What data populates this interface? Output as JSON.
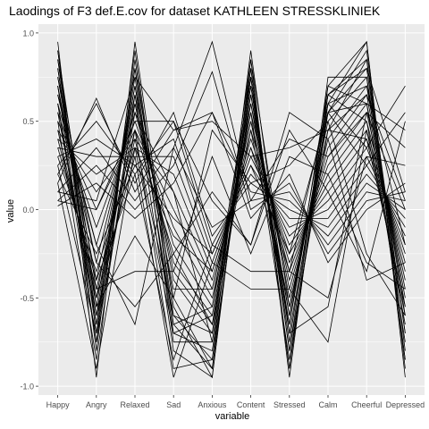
{
  "chart_data": {
    "type": "line",
    "title": "Laodings of F3 def.E.cov for dataset KATHLEEN STRESSKLINIEK",
    "xlabel": "variable",
    "ylabel": "value",
    "categories": [
      "Happy",
      "Angry",
      "Relaxed",
      "Sad",
      "Anxious",
      "Content",
      "Stressed",
      "Calm",
      "Cheerful",
      "Depressed"
    ],
    "ylim": [
      -1.05,
      1.05
    ],
    "yticks": [
      1.0,
      0.5,
      0.0,
      -0.5,
      -1.0
    ],
    "ytick_labels": [
      "1.0",
      "0.5",
      "0.0",
      "-0.5",
      "-1.0"
    ],
    "grid": true,
    "panel_background": "#ebebeb",
    "grid_color": "#ffffff",
    "line_color": "#000000",
    "series": [
      {
        "values": [
          0.95,
          -0.95,
          0.95,
          -0.55,
          -0.95,
          0.8,
          -0.9,
          0.6,
          0.95,
          -0.95
        ]
      },
      {
        "values": [
          0.9,
          -0.8,
          0.85,
          -0.6,
          -0.85,
          0.9,
          -0.7,
          0.55,
          0.9,
          -0.8
        ]
      },
      {
        "values": [
          0.85,
          -0.7,
          0.8,
          -0.5,
          -0.9,
          0.75,
          -0.8,
          0.45,
          0.85,
          -0.85
        ]
      },
      {
        "values": [
          0.8,
          -0.6,
          0.75,
          -0.7,
          -0.8,
          0.7,
          -0.6,
          0.65,
          0.8,
          -0.7
        ]
      },
      {
        "values": [
          0.75,
          -0.5,
          0.7,
          -0.4,
          -0.7,
          0.85,
          -0.55,
          0.5,
          0.75,
          -0.6
        ]
      },
      {
        "values": [
          0.7,
          -0.4,
          0.65,
          -0.35,
          -0.65,
          0.65,
          -0.5,
          0.4,
          0.7,
          -0.55
        ]
      },
      {
        "values": [
          0.65,
          -0.3,
          0.6,
          -0.3,
          -0.6,
          0.6,
          -0.45,
          0.35,
          0.65,
          -0.5
        ]
      },
      {
        "values": [
          0.6,
          -0.2,
          0.55,
          -0.2,
          -0.55,
          0.55,
          -0.4,
          0.3,
          0.6,
          -0.45
        ]
      },
      {
        "values": [
          0.55,
          -0.1,
          0.5,
          -0.1,
          -0.5,
          0.5,
          -0.35,
          0.25,
          0.55,
          -0.4
        ]
      },
      {
        "values": [
          0.5,
          0.0,
          0.45,
          0.0,
          -0.45,
          0.45,
          -0.3,
          0.2,
          0.5,
          -0.35
        ]
      },
      {
        "values": [
          0.45,
          0.1,
          0.4,
          0.1,
          -0.4,
          0.4,
          -0.25,
          0.15,
          0.45,
          -0.3
        ]
      },
      {
        "values": [
          0.4,
          0.2,
          0.35,
          0.2,
          -0.35,
          0.35,
          -0.2,
          0.1,
          0.4,
          -0.25
        ]
      },
      {
        "values": [
          0.35,
          0.3,
          0.3,
          0.3,
          -0.3,
          0.3,
          -0.15,
          0.05,
          0.35,
          -0.2
        ]
      },
      {
        "values": [
          0.3,
          0.4,
          0.25,
          0.4,
          -0.25,
          0.25,
          -0.1,
          0.0,
          0.3,
          -0.15
        ]
      },
      {
        "values": [
          0.25,
          0.5,
          0.2,
          0.5,
          -0.2,
          0.2,
          -0.05,
          -0.05,
          0.25,
          -0.1
        ]
      },
      {
        "values": [
          0.2,
          0.6,
          0.15,
          0.55,
          -0.15,
          0.15,
          0.0,
          -0.1,
          0.2,
          -0.05
        ]
      },
      {
        "values": [
          0.15,
          0.63,
          0.1,
          0.45,
          0.55,
          0.1,
          0.05,
          -0.15,
          0.15,
          0.0
        ]
      },
      {
        "values": [
          0.1,
          0.35,
          0.05,
          0.35,
          0.95,
          0.05,
          0.1,
          -0.2,
          0.1,
          0.05
        ]
      },
      {
        "values": [
          0.05,
          0.25,
          0.0,
          0.25,
          0.78,
          0.0,
          0.15,
          -0.25,
          0.05,
          0.1
        ]
      },
      {
        "values": [
          0.02,
          0.15,
          -0.05,
          0.15,
          0.55,
          -0.05,
          0.2,
          -0.3,
          0.0,
          0.15
        ]
      },
      {
        "values": [
          0.6,
          -0.75,
          0.55,
          0.1,
          -0.75,
          0.6,
          -0.6,
          0.55,
          0.6,
          -0.75
        ]
      },
      {
        "values": [
          0.5,
          -0.85,
          0.65,
          -0.8,
          -0.95,
          0.85,
          -0.95,
          0.7,
          0.95,
          -0.9
        ]
      },
      {
        "values": [
          0.7,
          -0.55,
          0.7,
          -0.65,
          -0.55,
          0.75,
          -0.75,
          0.65,
          0.5,
          -0.65
        ]
      },
      {
        "values": [
          0.8,
          -0.65,
          0.6,
          -0.45,
          -0.45,
          0.5,
          -0.55,
          0.45,
          0.4,
          -0.55
        ]
      },
      {
        "values": [
          0.4,
          -0.45,
          0.45,
          -0.25,
          -0.65,
          0.45,
          -0.65,
          0.7,
          0.6,
          0.45
        ]
      },
      {
        "values": [
          0.3,
          -0.35,
          0.35,
          -0.15,
          -0.35,
          0.35,
          -0.35,
          0.6,
          0.35,
          0.7
        ]
      },
      {
        "values": [
          0.2,
          -0.25,
          0.25,
          -0.05,
          -0.25,
          0.25,
          -0.25,
          0.55,
          0.25,
          0.55
        ]
      },
      {
        "values": [
          0.55,
          -0.6,
          0.4,
          -0.6,
          -0.7,
          0.7,
          -0.7,
          -0.55,
          0.55,
          0.35
        ]
      },
      {
        "values": [
          0.45,
          -0.5,
          0.3,
          -0.95,
          -0.3,
          -0.45,
          -0.45,
          -0.75,
          0.45,
          -0.6
        ]
      },
      {
        "values": [
          0.35,
          -0.4,
          0.2,
          -0.85,
          -0.2,
          -0.35,
          -0.35,
          -0.5,
          0.3,
          0.25
        ]
      },
      {
        "values": [
          0.65,
          -0.2,
          -0.65,
          0.35,
          -0.1,
          0.05,
          0.4,
          0.3,
          0.55,
          0.0
        ]
      },
      {
        "values": [
          0.75,
          -0.3,
          -0.55,
          -0.25,
          0.1,
          -0.2,
          0.55,
          0.4,
          -0.4,
          -0.3
        ]
      },
      {
        "values": [
          0.85,
          -0.45,
          -0.35,
          -0.35,
          0.3,
          -0.25,
          0.3,
          0.2,
          -0.3,
          -0.45
        ]
      },
      {
        "values": [
          0.9,
          -0.55,
          -0.15,
          -0.5,
          0.45,
          0.15,
          0.25,
          0.5,
          -0.25,
          -0.6
        ]
      },
      {
        "values": [
          0.25,
          -0.7,
          0.45,
          -0.9,
          -0.85,
          0.65,
          -0.65,
          0.6,
          0.7,
          -0.2
        ]
      },
      {
        "values": [
          0.15,
          -0.9,
          0.35,
          -0.7,
          -0.6,
          0.55,
          -0.85,
          0.55,
          0.8,
          0.1
        ]
      },
      {
        "values": [
          0.1,
          0.05,
          0.75,
          0.45,
          0.5,
          0.3,
          0.35,
          0.45,
          0.65,
          0.05
        ]
      },
      {
        "values": [
          0.05,
          0.0,
          0.5,
          0.5,
          0.05,
          -0.2,
          0.45,
          0.1,
          -0.35,
          0.5
        ]
      },
      {
        "values": [
          0.6,
          -0.65,
          0.8,
          -0.75,
          -0.75,
          0.8,
          -0.8,
          0.65,
          0.85,
          -0.7
        ]
      },
      {
        "values": [
          0.7,
          -0.75,
          0.9,
          -0.65,
          -0.9,
          0.75,
          -0.9,
          0.75,
          0.75,
          -0.85
        ]
      }
    ]
  }
}
